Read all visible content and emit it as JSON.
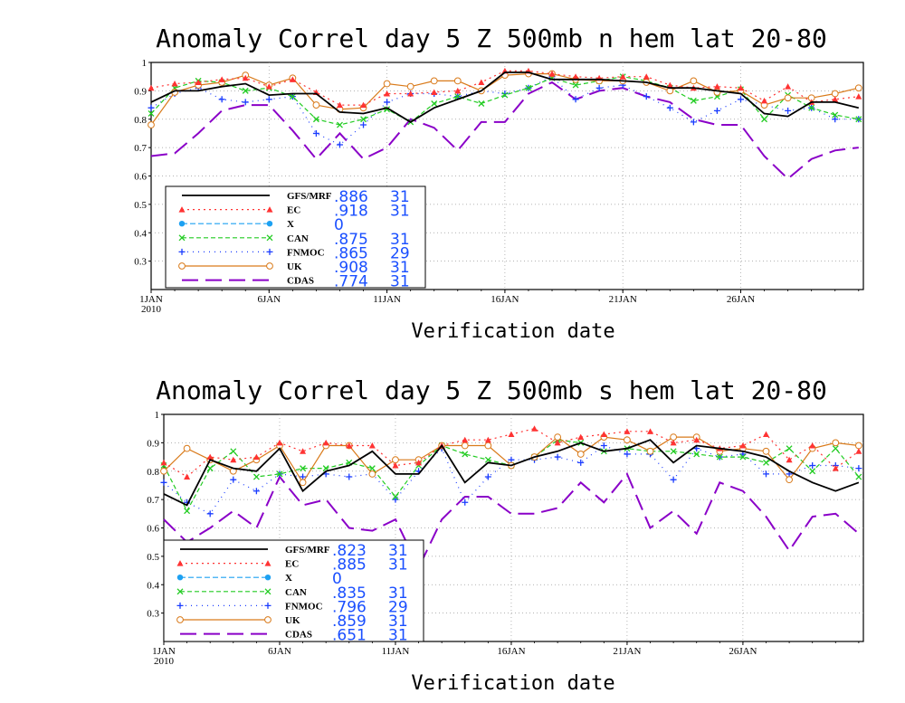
{
  "chart_data": [
    {
      "type": "line",
      "title": "Anomaly Correl  day 5  Z 500mb  n hem  lat 20-80",
      "xlabel": "Verification date",
      "ylabel": "",
      "ylim": [
        0.2,
        1.0
      ],
      "xlim": [
        1,
        31
      ],
      "yticks": [
        "1",
        "0.9",
        "0.8",
        "0.7",
        "0.6",
        "0.5",
        "0.4",
        "0.3"
      ],
      "xticks": [
        {
          "day": 1,
          "label": "1JAN",
          "sub": "2010"
        },
        {
          "day": 6,
          "label": "6JAN",
          "sub": ""
        },
        {
          "day": 11,
          "label": "11JAN",
          "sub": ""
        },
        {
          "day": 16,
          "label": "16JAN",
          "sub": ""
        },
        {
          "day": 21,
          "label": "21JAN",
          "sub": ""
        },
        {
          "day": 26,
          "label": "26JAN",
          "sub": ""
        }
      ],
      "grid": true,
      "legend_position": "lower-left",
      "series": [
        {
          "name": "GFS/MRF",
          "score": ".886",
          "count": "31",
          "color": "#000000",
          "dash": "",
          "marker": "none",
          "values": [
            0.86,
            0.9,
            0.9,
            0.915,
            0.925,
            0.885,
            0.89,
            0.89,
            0.825,
            0.82,
            0.84,
            0.79,
            0.84,
            0.87,
            0.9,
            0.965,
            0.965,
            0.94,
            0.94,
            0.94,
            0.935,
            0.93,
            0.91,
            0.91,
            0.9,
            0.89,
            0.82,
            0.81,
            0.86,
            0.86,
            0.84
          ]
        },
        {
          "name": "EC",
          "score": ".918",
          "count": "31",
          "color": "#ff3333",
          "dash": "2,4",
          "marker": "triangle",
          "values": [
            0.91,
            0.925,
            0.93,
            0.94,
            0.945,
            0.915,
            0.94,
            0.895,
            0.85,
            0.85,
            0.89,
            0.89,
            0.895,
            0.9,
            0.93,
            0.97,
            0.97,
            0.96,
            0.95,
            0.945,
            0.95,
            0.95,
            0.92,
            0.91,
            0.915,
            0.91,
            0.865,
            0.915,
            0.86,
            0.87,
            0.88
          ]
        },
        {
          "name": "X",
          "score": "0",
          "count": "",
          "color": "#1da1f2",
          "dash": "6,3",
          "marker": "circle",
          "values": []
        },
        {
          "name": "CAN",
          "score": ".875",
          "count": "31",
          "color": "#22cc22",
          "dash": "5,3",
          "marker": "x",
          "values": [
            0.82,
            0.91,
            0.935,
            0.93,
            0.9,
            0.91,
            0.88,
            0.8,
            0.78,
            0.8,
            0.835,
            0.79,
            0.855,
            0.88,
            0.855,
            0.885,
            0.91,
            0.945,
            0.92,
            0.935,
            0.95,
            0.935,
            0.91,
            0.865,
            0.88,
            0.905,
            0.8,
            0.885,
            0.84,
            0.815,
            0.8
          ]
        },
        {
          "name": "FNMOC",
          "score": ".865",
          "count": "29",
          "color": "#1a3cff",
          "dash": "1,5",
          "marker": "plus",
          "values": [
            0.84,
            0.89,
            0.91,
            0.87,
            0.86,
            0.87,
            0.88,
            0.75,
            0.71,
            0.78,
            0.86,
            0.89,
            0.89,
            0.88,
            0.9,
            0.89,
            0.91,
            0.95,
            0.87,
            0.91,
            0.92,
            0.88,
            0.84,
            0.79,
            0.83,
            0.87,
            0.85,
            0.83,
            0.84,
            0.8,
            0.8
          ]
        },
        {
          "name": "UK",
          "score": ".908",
          "count": "31",
          "color": "#d97a1a",
          "dash": "",
          "marker": "ocircle",
          "values": [
            0.78,
            0.895,
            0.92,
            0.93,
            0.955,
            0.92,
            0.945,
            0.85,
            0.835,
            0.84,
            0.925,
            0.915,
            0.935,
            0.935,
            0.9,
            0.955,
            0.96,
            0.96,
            0.94,
            0.935,
            0.935,
            0.93,
            0.9,
            0.935,
            0.895,
            0.9,
            0.85,
            0.875,
            0.875,
            0.89,
            0.91
          ]
        },
        {
          "name": "CDAS",
          "score": ".774",
          "count": "31",
          "color": "#8a00c8",
          "dash": "18,8",
          "marker": "none",
          "values": [
            0.67,
            0.68,
            0.75,
            0.83,
            0.85,
            0.85,
            0.76,
            0.66,
            0.75,
            0.66,
            0.7,
            0.8,
            0.77,
            0.69,
            0.79,
            0.79,
            0.89,
            0.93,
            0.87,
            0.9,
            0.91,
            0.88,
            0.86,
            0.8,
            0.78,
            0.78,
            0.67,
            0.59,
            0.66,
            0.69,
            0.7
          ]
        }
      ]
    },
    {
      "type": "line",
      "title": "Anomaly Correl  day 5  Z 500mb  s hem  lat 20-80",
      "xlabel": "Verification date",
      "ylabel": "",
      "ylim": [
        0.2,
        1.0
      ],
      "xlim": [
        1,
        31
      ],
      "yticks": [
        "1",
        "0.9",
        "0.8",
        "0.7",
        "0.6",
        "0.5",
        "0.4",
        "0.3"
      ],
      "xticks": [
        {
          "day": 1,
          "label": "1JAN",
          "sub": "2010"
        },
        {
          "day": 6,
          "label": "6JAN",
          "sub": ""
        },
        {
          "day": 11,
          "label": "11JAN",
          "sub": ""
        },
        {
          "day": 16,
          "label": "16JAN",
          "sub": ""
        },
        {
          "day": 21,
          "label": "21JAN",
          "sub": ""
        },
        {
          "day": 26,
          "label": "26JAN",
          "sub": ""
        }
      ],
      "grid": true,
      "legend_position": "lower-left",
      "series": [
        {
          "name": "GFS/MRF",
          "score": ".823",
          "count": "31",
          "color": "#000000",
          "dash": "",
          "marker": "none",
          "values": [
            0.72,
            0.68,
            0.84,
            0.81,
            0.8,
            0.88,
            0.73,
            0.8,
            0.82,
            0.87,
            0.79,
            0.79,
            0.89,
            0.76,
            0.83,
            0.82,
            0.85,
            0.87,
            0.9,
            0.87,
            0.88,
            0.91,
            0.83,
            0.89,
            0.88,
            0.87,
            0.85,
            0.8,
            0.76,
            0.73,
            0.76
          ]
        },
        {
          "name": "EC",
          "score": ".885",
          "count": "31",
          "color": "#ff3333",
          "dash": "2,4",
          "marker": "triangle",
          "values": [
            0.83,
            0.78,
            0.85,
            0.84,
            0.85,
            0.9,
            0.87,
            0.9,
            0.89,
            0.89,
            0.82,
            0.83,
            0.89,
            0.91,
            0.91,
            0.93,
            0.95,
            0.9,
            0.92,
            0.93,
            0.94,
            0.94,
            0.9,
            0.91,
            0.88,
            0.89,
            0.93,
            0.84,
            0.89,
            0.81,
            0.87
          ]
        },
        {
          "name": "X",
          "score": "0",
          "count": "",
          "color": "#1da1f2",
          "dash": "6,3",
          "marker": "circle",
          "values": []
        },
        {
          "name": "CAN",
          "score": ".835",
          "count": "31",
          "color": "#22cc22",
          "dash": "5,3",
          "marker": "x",
          "values": [
            0.82,
            0.66,
            0.81,
            0.87,
            0.78,
            0.79,
            0.81,
            0.81,
            0.83,
            0.81,
            0.71,
            0.82,
            0.89,
            0.86,
            0.84,
            0.82,
            0.85,
            0.91,
            0.9,
            0.87,
            0.88,
            0.87,
            0.87,
            0.86,
            0.85,
            0.85,
            0.83,
            0.88,
            0.8,
            0.88,
            0.78
          ]
        },
        {
          "name": "FNMOC",
          "score": ".796",
          "count": "29",
          "color": "#1a3cff",
          "dash": "1,5",
          "marker": "plus",
          "values": [
            0.76,
            0.69,
            0.65,
            0.77,
            0.73,
            0.79,
            0.78,
            0.79,
            0.78,
            0.79,
            0.7,
            0.8,
            0.88,
            0.69,
            0.78,
            0.84,
            0.84,
            0.85,
            0.83,
            0.89,
            0.86,
            0.86,
            0.77,
            0.88,
            0.85,
            0.86,
            0.79,
            0.79,
            0.82,
            0.82,
            0.81
          ]
        },
        {
          "name": "UK",
          "score": ".859",
          "count": "31",
          "color": "#d97a1a",
          "dash": "",
          "marker": "ocircle",
          "values": [
            0.8,
            0.88,
            0.84,
            0.8,
            0.84,
            0.89,
            0.76,
            0.89,
            0.89,
            0.79,
            0.84,
            0.84,
            0.89,
            0.89,
            0.89,
            0.82,
            0.85,
            0.92,
            0.86,
            0.92,
            0.91,
            0.87,
            0.92,
            0.92,
            0.87,
            0.88,
            0.87,
            0.77,
            0.88,
            0.9,
            0.89
          ]
        },
        {
          "name": "CDAS",
          "score": ".651",
          "count": "31",
          "color": "#8a00c8",
          "dash": "18,8",
          "marker": "none",
          "values": [
            0.63,
            0.55,
            0.6,
            0.66,
            0.6,
            0.78,
            0.68,
            0.7,
            0.6,
            0.59,
            0.63,
            0.46,
            0.63,
            0.71,
            0.71,
            0.65,
            0.65,
            0.67,
            0.76,
            0.69,
            0.79,
            0.6,
            0.66,
            0.58,
            0.76,
            0.73,
            0.64,
            0.52,
            0.64,
            0.65,
            0.58
          ]
        }
      ]
    }
  ]
}
